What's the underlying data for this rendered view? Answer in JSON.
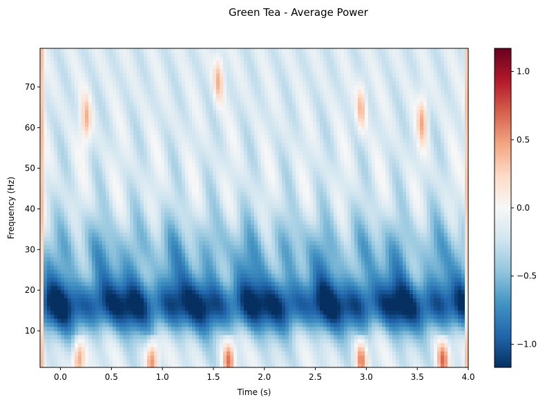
{
  "chart_data": {
    "type": "heatmap",
    "title": "Green Tea - Average Power",
    "xlabel": "Time (s)",
    "ylabel": "Frequency (Hz)",
    "xlim": [
      -0.2,
      4.0
    ],
    "ylim": [
      1,
      79.5
    ],
    "x_ticks": [
      0.0,
      0.5,
      1.0,
      1.5,
      2.0,
      2.5,
      3.0,
      3.5,
      4.0
    ],
    "x_tick_labels": [
      "0.0",
      "0.5",
      "1.0",
      "1.5",
      "2.0",
      "2.5",
      "3.0",
      "3.5",
      "4.0"
    ],
    "y_ticks": [
      10,
      20,
      30,
      40,
      50,
      60,
      70
    ],
    "y_tick_labels": [
      "10",
      "20",
      "30",
      "40",
      "50",
      "60",
      "70"
    ],
    "colormap": "RdBu_r",
    "colorbar": {
      "range": [
        -1.17,
        1.17
      ],
      "ticks": [
        -1.0,
        -0.5,
        0.0,
        0.5,
        1.0
      ],
      "tick_labels": [
        "−1.0",
        "−0.5",
        "0.0",
        "0.5",
        "1.0"
      ]
    },
    "features": {
      "strongest_suppression_band_hz": [
        12,
        20
      ],
      "suppression_peak_value": -1.1,
      "edge_columns_value": 0.5,
      "low_freq_positive_bursts_time_s": [
        0.18,
        0.9,
        1.65,
        2.95,
        3.75
      ],
      "high_freq_positive_spots": [
        {
          "time_s": 0.25,
          "freq_hz": 62,
          "value": 0.3
        },
        {
          "time_s": 1.55,
          "freq_hz": 72,
          "value": 0.3
        },
        {
          "time_s": 2.95,
          "freq_hz": 65,
          "value": 0.3
        },
        {
          "time_s": 3.55,
          "freq_hz": 62,
          "value": 0.3
        }
      ]
    }
  }
}
